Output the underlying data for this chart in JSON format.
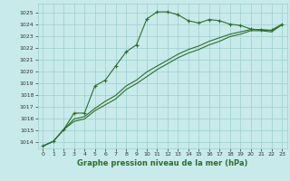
{
  "title": "",
  "xlabel": "Graphe pression niveau de la mer (hPa)",
  "ylabel": "",
  "bg_color": "#c8eaea",
  "grid_color": "#9ecece",
  "line_color": "#2d6e2d",
  "x_ticks": [
    0,
    1,
    2,
    3,
    4,
    5,
    6,
    7,
    8,
    9,
    10,
    11,
    12,
    13,
    14,
    15,
    16,
    17,
    18,
    19,
    20,
    21,
    22,
    23
  ],
  "y_ticks": [
    1014,
    1015,
    1016,
    1017,
    1018,
    1019,
    1020,
    1021,
    1022,
    1023,
    1024,
    1025
  ],
  "ylim": [
    1013.5,
    1025.8
  ],
  "xlim": [
    -0.5,
    23.5
  ],
  "series": [
    [
      1013.7,
      1014.1,
      1015.1,
      1016.5,
      1016.5,
      1018.8,
      1019.3,
      1020.5,
      1021.7,
      1022.3,
      1024.5,
      1025.1,
      1025.1,
      1024.85,
      1024.35,
      1024.15,
      1024.45,
      1024.35,
      1024.05,
      1023.95,
      1023.65,
      1023.55,
      1023.55,
      1024.05
    ],
    [
      1013.7,
      1014.1,
      1015.1,
      1015.8,
      1016.0,
      1016.7,
      1017.2,
      1017.7,
      1018.5,
      1019.0,
      1019.6,
      1020.2,
      1020.7,
      1021.2,
      1021.6,
      1021.9,
      1022.3,
      1022.6,
      1023.0,
      1023.2,
      1023.5,
      1023.5,
      1023.4,
      1024.0
    ],
    [
      1013.7,
      1014.1,
      1015.1,
      1016.0,
      1016.2,
      1016.9,
      1017.5,
      1018.0,
      1018.8,
      1019.3,
      1020.0,
      1020.5,
      1021.0,
      1021.5,
      1021.9,
      1022.2,
      1022.6,
      1022.9,
      1023.2,
      1023.4,
      1023.6,
      1023.6,
      1023.5,
      1024.0
    ]
  ],
  "series_markers": [
    true,
    false,
    false
  ],
  "xlabel_fontsize": 6,
  "xlabel_color": "#2d6e2d",
  "tick_fontsize": 4.5,
  "linewidth": 0.8,
  "markersize": 3,
  "markeredgewidth": 0.8
}
